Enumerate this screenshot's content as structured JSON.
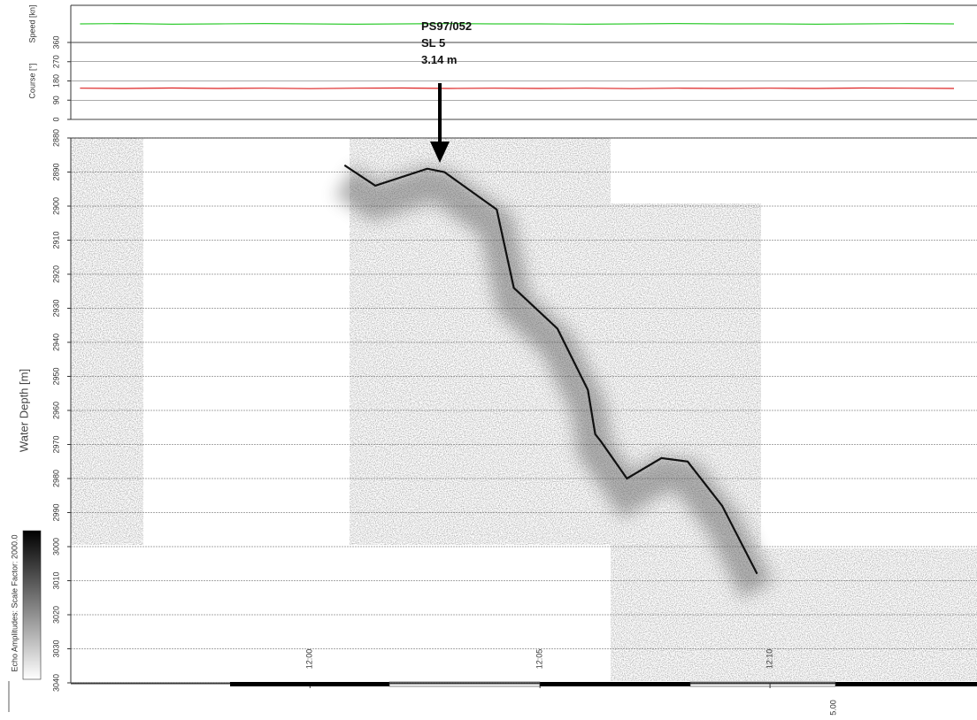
{
  "chart_data": [
    {
      "type": "line",
      "ylabel": "Speed [kn]",
      "color": "#33cc33",
      "x": [
        -5,
        -4,
        -3,
        -2,
        -1,
        0,
        1,
        2,
        3,
        4,
        5,
        6,
        7,
        8,
        9,
        10,
        11,
        12,
        13,
        14
      ],
      "values": [
        5.0,
        5.1,
        4.9,
        5.0,
        5.1,
        5.0,
        4.9,
        5.0,
        5.1,
        5.0,
        5.0,
        4.9,
        5.0,
        5.1,
        5.0,
        5.0,
        4.9,
        5.0,
        5.1,
        5.0
      ],
      "xlim": [
        -5.2,
        14.5
      ],
      "ylim": [
        0,
        10
      ]
    },
    {
      "type": "line",
      "ylabel": "Course [°]",
      "color": "#dd2222",
      "x": [
        -5,
        -4,
        -3,
        -2,
        -1,
        0,
        1,
        2,
        3,
        4,
        5,
        6,
        7,
        8,
        9,
        10,
        11,
        12,
        13,
        14
      ],
      "values": [
        146,
        145,
        147,
        145,
        146,
        144,
        146,
        147,
        145,
        146,
        145,
        146,
        144,
        146,
        145,
        146,
        145,
        147,
        146,
        145
      ],
      "xlim": [
        -5.2,
        14.5
      ],
      "ylim": [
        0,
        360
      ],
      "yticks": [
        0,
        90,
        180,
        270,
        360
      ],
      "grid": true
    },
    {
      "type": "echogram",
      "ylabel": "Water Depth [m]",
      "color": "#111111",
      "x": [
        0.75,
        1.42,
        2.55,
        2.92,
        4.06,
        4.43,
        5.38,
        6.04,
        6.2,
        6.32,
        6.89,
        7.64,
        8.21,
        8.96,
        9.72
      ],
      "values": [
        2888,
        2894,
        2889,
        2890,
        2901,
        2924,
        2936,
        2954,
        2967,
        2969,
        2980,
        2974,
        2975,
        2988,
        3008
      ],
      "xlim": [
        -5.2,
        14.5
      ],
      "ylim": [
        2880,
        3040
      ],
      "y_inverted": true,
      "yticks": [
        2880,
        2890,
        2900,
        2910,
        2920,
        2930,
        2940,
        2950,
        2960,
        2970,
        2980,
        2990,
        3000,
        3010,
        3020,
        3030,
        3040
      ],
      "xticks": [
        {
          "value": 0,
          "label": "12:00"
        },
        {
          "value": 5,
          "label": "12:05"
        },
        {
          "value": 10,
          "label": "12:10"
        }
      ],
      "grid": true,
      "annotation": [
        "PS97/052",
        "SL 5",
        "3.14 m"
      ],
      "scale_label": "5.00",
      "colorbar_label": "Echo Amplitudes:  Scale Factor:  2000.0"
    }
  ]
}
